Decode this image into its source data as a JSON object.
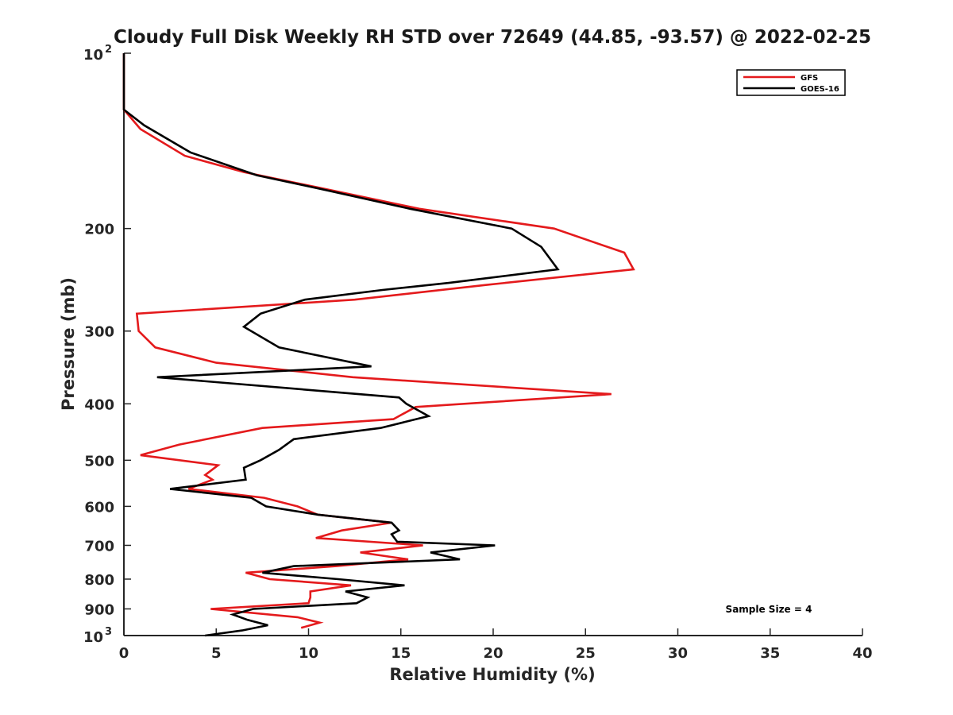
{
  "chart_data": {
    "type": "line",
    "title": "Cloudy Full Disk Weekly RH STD over 72649 (44.85, -93.57) @ 2022-02-25",
    "xlabel": "Relative Humidity (%)",
    "ylabel": "Pressure (mb)",
    "xlim": [
      0,
      40
    ],
    "ylim": [
      100,
      1000
    ],
    "y_scale": "log",
    "y_reversed": true,
    "grid": false,
    "x_ticks": [
      0,
      5,
      10,
      15,
      20,
      25,
      30,
      35,
      40
    ],
    "x_tick_labels": [
      "0",
      "5",
      "10",
      "15",
      "20",
      "25",
      "30",
      "35",
      "40"
    ],
    "y_ticks": [
      200,
      300,
      400,
      500,
      600,
      700,
      800,
      900
    ],
    "y_tick_labels": [
      "200",
      "300",
      "400",
      "500",
      "600",
      "700",
      "800",
      "900"
    ],
    "y_end_labels": {
      "top": "10",
      "top_exp": "2",
      "bottom": "10",
      "bottom_exp": "3"
    },
    "legend": {
      "placement": "top-right",
      "entries": [
        "GFS",
        "GOES-16"
      ]
    },
    "annotation": "Sample Size = 4",
    "series": [
      {
        "name": "GFS",
        "color": "#e41a1c",
        "points": [
          [
            0,
            100
          ],
          [
            0,
            125
          ],
          [
            0.9,
            135
          ],
          [
            3.3,
            150
          ],
          [
            6.5,
            160
          ],
          [
            10.5,
            170
          ],
          [
            16,
            185
          ],
          [
            23.3,
            200
          ],
          [
            27.1,
            220
          ],
          [
            27.6,
            235
          ],
          [
            19.6,
            250
          ],
          [
            12.5,
            265
          ],
          [
            0.7,
            280
          ],
          [
            0.8,
            300
          ],
          [
            1.7,
            320
          ],
          [
            5,
            340
          ],
          [
            12.4,
            360
          ],
          [
            26.4,
            385
          ],
          [
            15.8,
            405
          ],
          [
            14.6,
            425
          ],
          [
            7.5,
            440
          ],
          [
            3,
            470
          ],
          [
            0.9,
            490
          ],
          [
            5.1,
            510
          ],
          [
            4.4,
            530
          ],
          [
            4.8,
            540
          ],
          [
            3.5,
            560
          ],
          [
            7.6,
            580
          ],
          [
            9.4,
            600
          ],
          [
            10.5,
            620
          ],
          [
            14.5,
            640
          ],
          [
            11.8,
            660
          ],
          [
            10.4,
            680
          ],
          [
            16.2,
            700
          ],
          [
            12.8,
            720
          ],
          [
            15.4,
            740
          ],
          [
            11.5,
            760
          ],
          [
            6.6,
            780
          ],
          [
            7.9,
            800
          ],
          [
            12.3,
            820
          ],
          [
            10.1,
            840
          ],
          [
            10.1,
            860
          ],
          [
            10,
            880
          ],
          [
            4.7,
            900
          ],
          [
            9.4,
            930
          ],
          [
            10.6,
            950
          ],
          [
            9.6,
            970
          ]
        ]
      },
      {
        "name": "GOES-16",
        "color": "#000000",
        "points": [
          [
            0,
            100
          ],
          [
            0,
            125
          ],
          [
            1.1,
            133
          ],
          [
            3.6,
            148
          ],
          [
            7.2,
            162
          ],
          [
            11,
            172
          ],
          [
            15.5,
            185
          ],
          [
            21,
            200
          ],
          [
            22.6,
            215
          ],
          [
            23.5,
            235
          ],
          [
            17.6,
            248
          ],
          [
            14,
            255
          ],
          [
            9.8,
            265
          ],
          [
            7.4,
            280
          ],
          [
            6.5,
            295
          ],
          [
            8.4,
            320
          ],
          [
            13.4,
            345
          ],
          [
            1.8,
            360
          ],
          [
            14.9,
            390
          ],
          [
            15.3,
            400
          ],
          [
            16.5,
            420
          ],
          [
            13.9,
            440
          ],
          [
            9.2,
            460
          ],
          [
            8.4,
            480
          ],
          [
            7.4,
            500
          ],
          [
            6.5,
            515
          ],
          [
            6.6,
            540
          ],
          [
            2.5,
            560
          ],
          [
            6.9,
            580
          ],
          [
            7.7,
            600
          ],
          [
            10.5,
            620
          ],
          [
            14.5,
            640
          ],
          [
            14.9,
            660
          ],
          [
            14.5,
            670
          ],
          [
            14.8,
            690
          ],
          [
            20.1,
            700
          ],
          [
            16.6,
            720
          ],
          [
            18.2,
            740
          ],
          [
            9.2,
            760
          ],
          [
            7.5,
            780
          ],
          [
            11.6,
            800
          ],
          [
            15.2,
            820
          ],
          [
            12,
            840
          ],
          [
            13.2,
            860
          ],
          [
            12.6,
            880
          ],
          [
            7,
            900
          ],
          [
            5.9,
            920
          ],
          [
            6.7,
            940
          ],
          [
            7.8,
            960
          ],
          [
            6.4,
            980
          ],
          [
            4.4,
            1000
          ]
        ]
      }
    ]
  }
}
